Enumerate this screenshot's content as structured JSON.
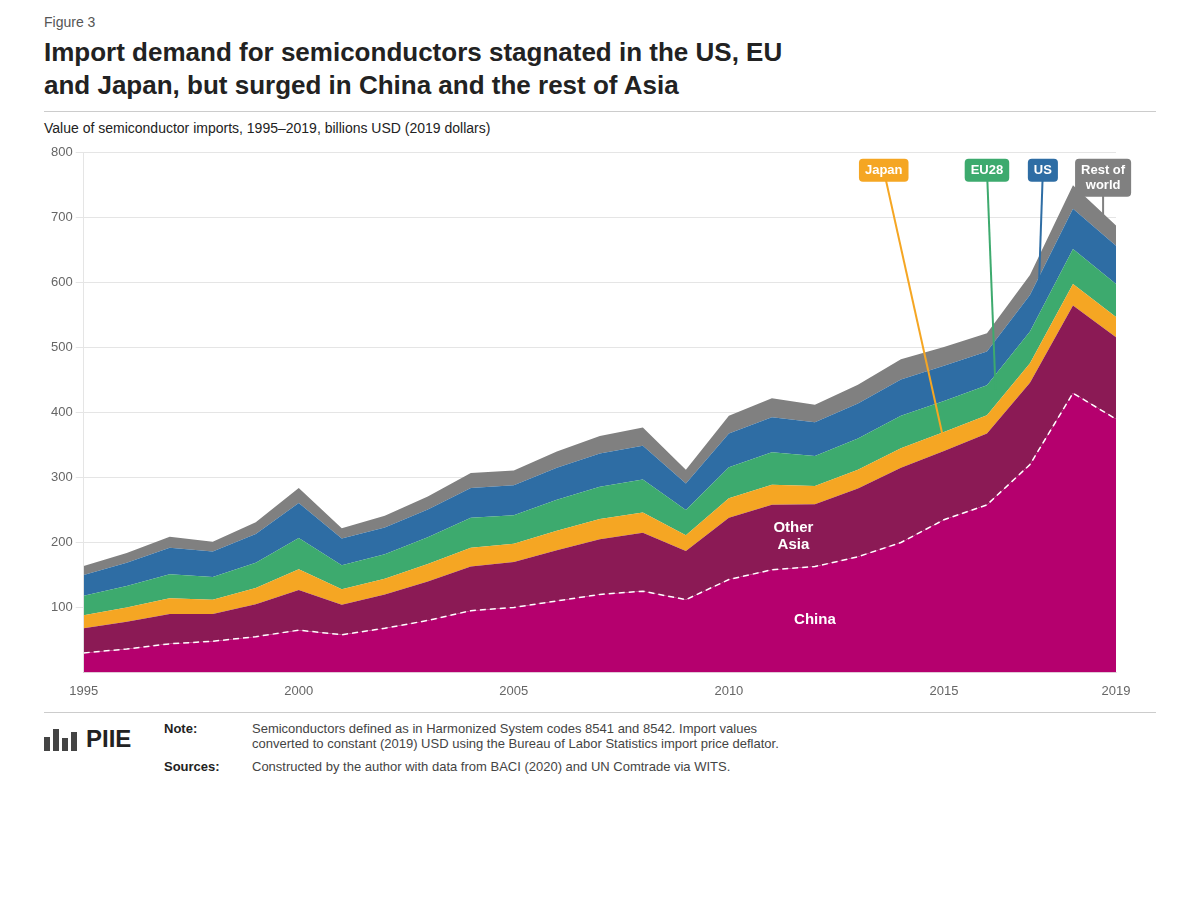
{
  "chart_data": {
    "type": "area",
    "stacked": true,
    "figure_label": "Figure 3",
    "title": "Import demand for semiconductors stagnated in the US, EU\nand Japan, but surged in China and the rest of Asia",
    "subtitle": "Value of semiconductor imports, 1995–2019, billions USD (2019 dollars)",
    "note_label": "Note:",
    "note": "Semiconductors defined as in Harmonized System codes 8541 and 8542. Import values\nconverted to constant (2019) USD using the Bureau of Labor Statistics import price deflator.",
    "sources_label": "Sources:",
    "sources": "Constructed by the author with data from BACI (2020) and UN Comtrade via WITS.",
    "logo": "PIIE",
    "x": [
      1995,
      1996,
      1997,
      1998,
      1999,
      2000,
      2001,
      2002,
      2003,
      2004,
      2005,
      2006,
      2007,
      2008,
      2009,
      2010,
      2011,
      2012,
      2013,
      2014,
      2015,
      2016,
      2017,
      2018,
      2019
    ],
    "series": [
      {
        "name": "China",
        "color": "#B5006E",
        "values": [
          30,
          36,
          44,
          48,
          55,
          65,
          58,
          68,
          80,
          95,
          100,
          110,
          120,
          125,
          112,
          143,
          158,
          163,
          178,
          200,
          235,
          258,
          320,
          430,
          390
        ]
      },
      {
        "name": "Other\nAsia",
        "color": "#8B1A55",
        "values": [
          38,
          42,
          46,
          42,
          50,
          62,
          46,
          52,
          60,
          68,
          70,
          78,
          85,
          90,
          75,
          95,
          100,
          96,
          105,
          115,
          106,
          110,
          126,
          135,
          126
        ]
      },
      {
        "name": "Japan",
        "color": "#F5A623",
        "values": [
          20,
          22,
          24,
          22,
          25,
          32,
          24,
          24,
          27,
          29,
          28,
          30,
          31,
          31,
          24,
          30,
          31,
          28,
          29,
          30,
          29,
          28,
          30,
          33,
          31
        ]
      },
      {
        "name": "EU28",
        "color": "#3DAA6E",
        "values": [
          30,
          33,
          37,
          35,
          39,
          48,
          37,
          38,
          41,
          46,
          44,
          48,
          50,
          51,
          39,
          48,
          50,
          46,
          48,
          50,
          48,
          46,
          49,
          54,
          51
        ]
      },
      {
        "name": "US",
        "color": "#2E6DA4",
        "values": [
          32,
          36,
          41,
          39,
          44,
          54,
          41,
          41,
          43,
          46,
          46,
          49,
          51,
          52,
          41,
          52,
          54,
          52,
          54,
          56,
          54,
          52,
          56,
          62,
          59
        ]
      },
      {
        "name": "Rest of\nworld",
        "color": "#808080",
        "values": [
          14,
          15,
          17,
          15,
          18,
          23,
          16,
          18,
          20,
          23,
          23,
          25,
          27,
          28,
          21,
          27,
          29,
          27,
          29,
          31,
          29,
          28,
          31,
          36,
          31
        ]
      }
    ],
    "xlim": [
      1995,
      2019
    ],
    "xticks": [
      1995,
      2000,
      2005,
      2010,
      2015,
      2019
    ],
    "ylim": [
      0,
      800
    ],
    "yticks": [
      100,
      200,
      300,
      400,
      500,
      600,
      700,
      800
    ],
    "grid": true
  }
}
